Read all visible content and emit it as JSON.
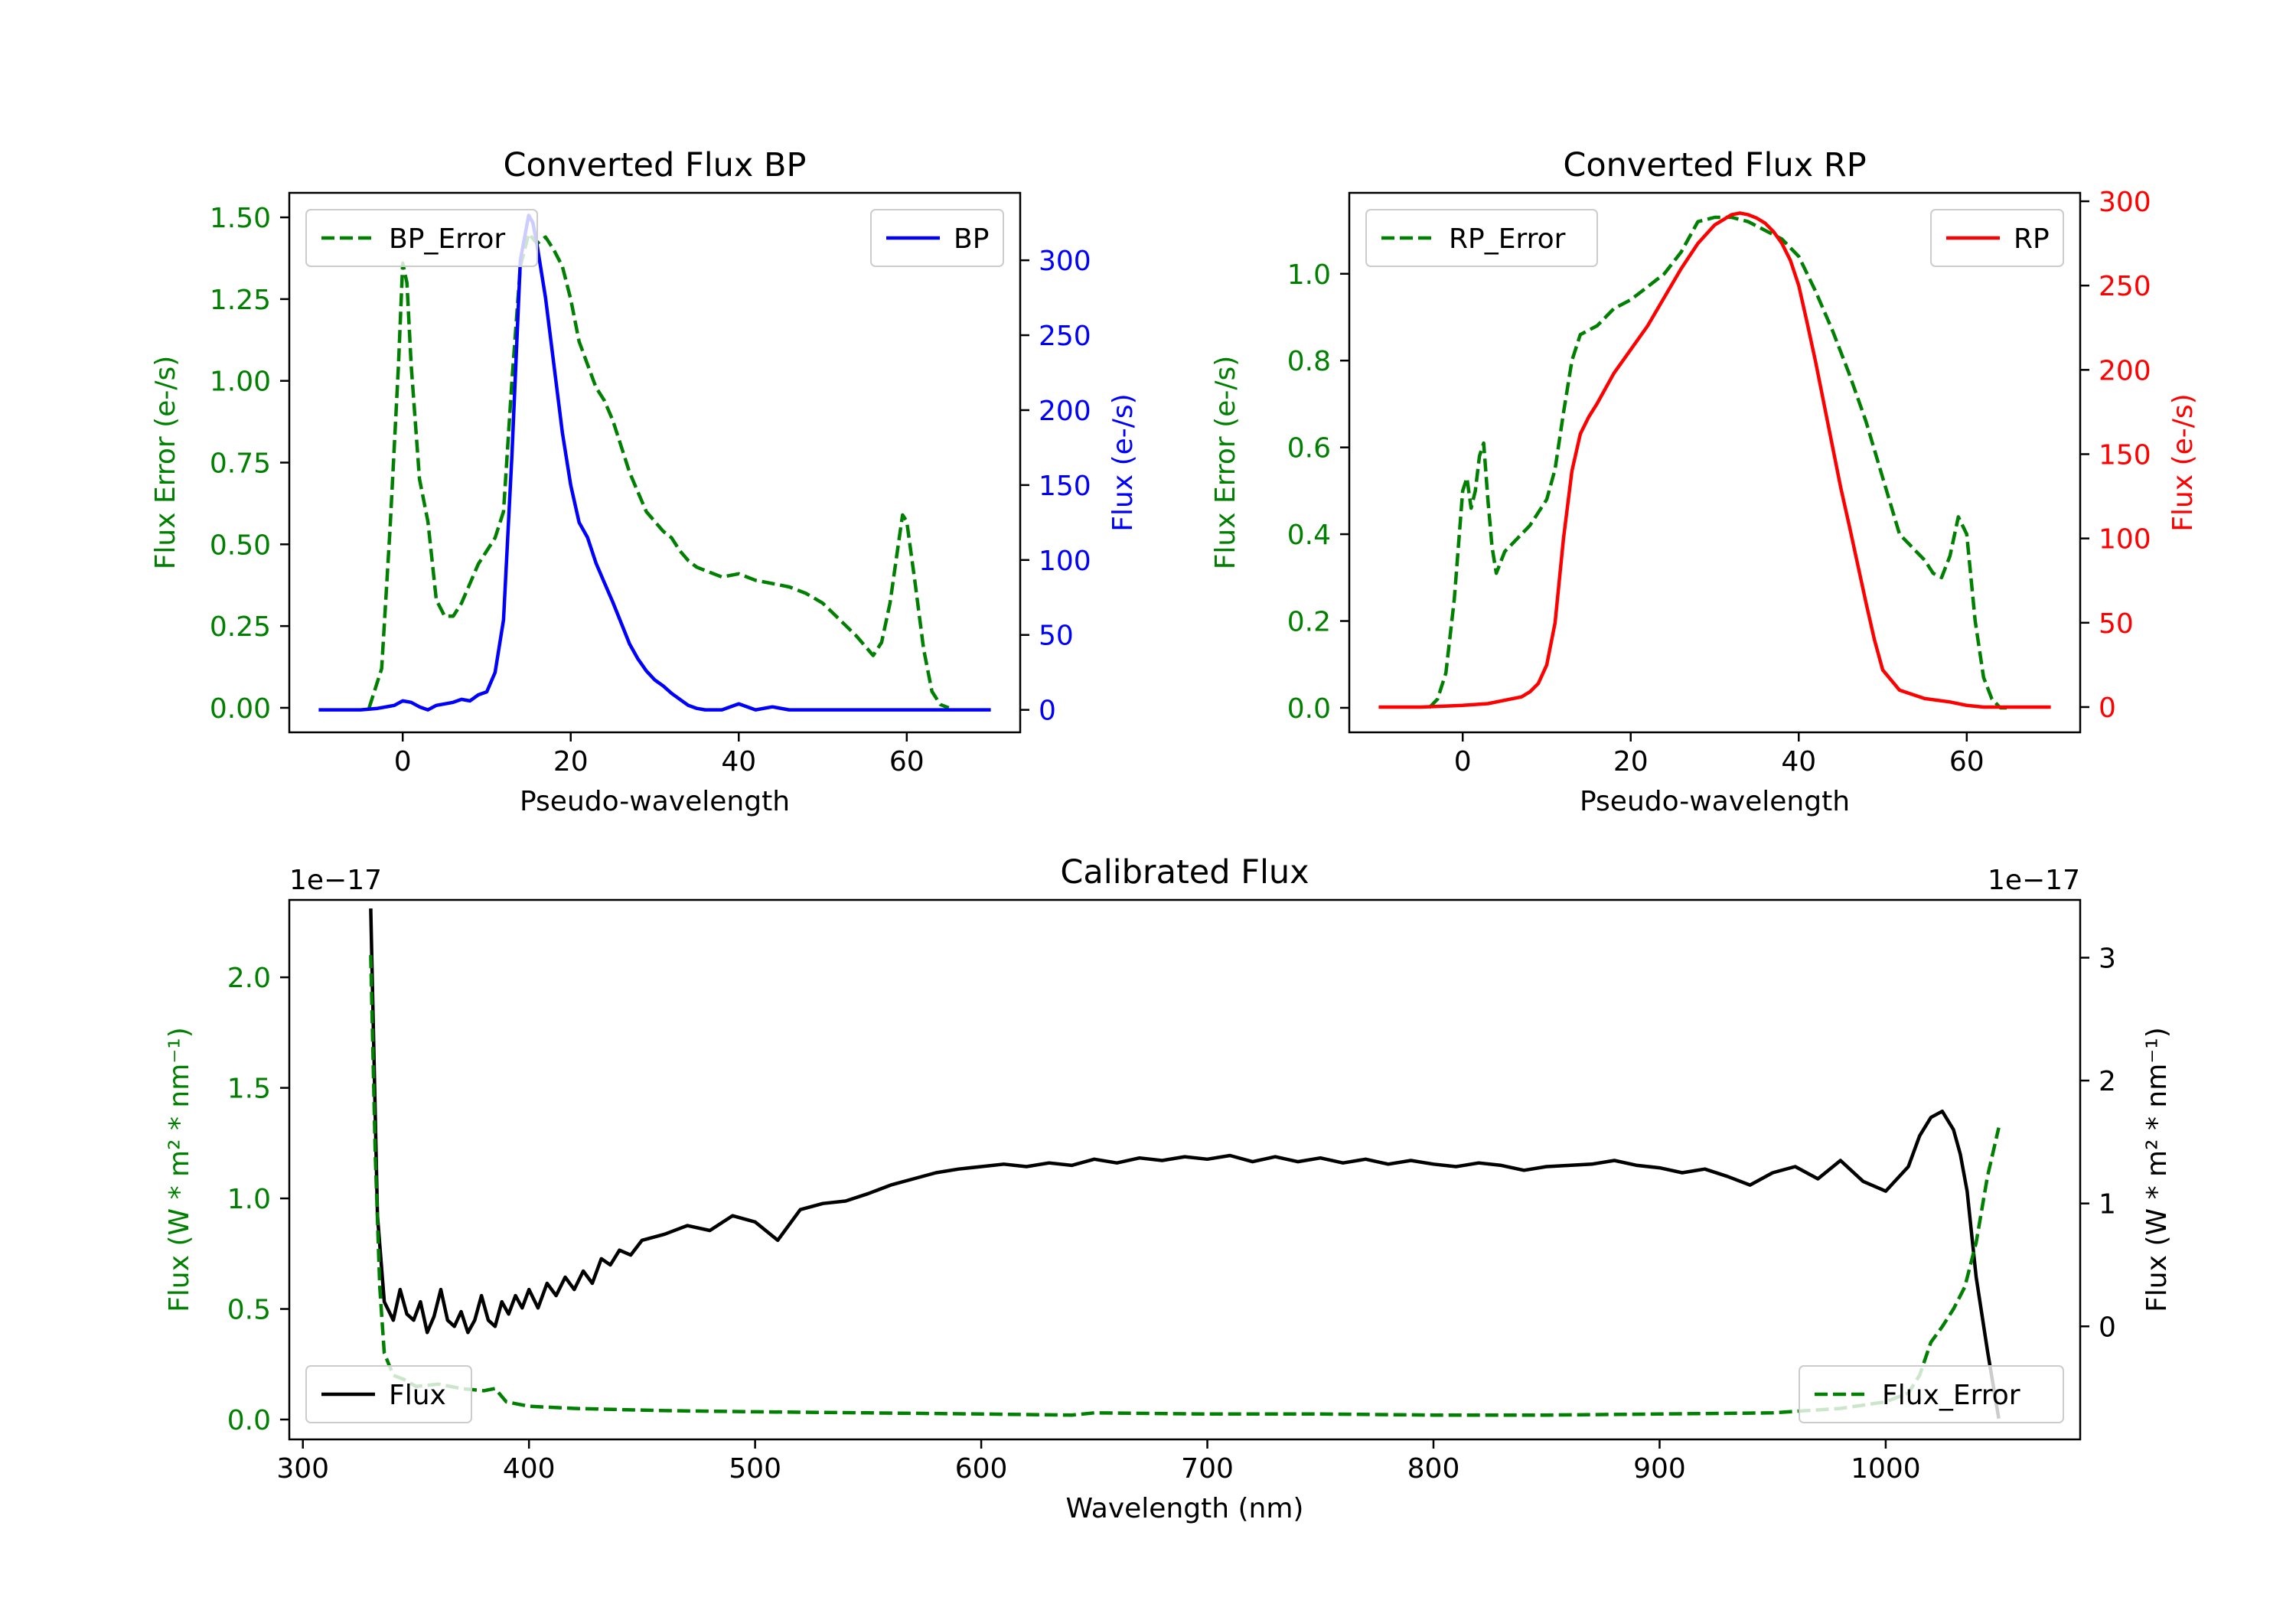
{
  "chart_data": [
    {
      "id": "bp",
      "type": "line",
      "title": "Converted Flux BP",
      "xlabel": "Pseudo-wavelength",
      "ylabel_left": "Flux Error (e-/s)",
      "ylabel_right": "Flux (e-/s)",
      "xlim": [
        -13.5,
        73.5
      ],
      "ylim_left": [
        -0.075,
        1.575
      ],
      "ylim_right": [
        -15,
        345
      ],
      "xticks": [
        0,
        20,
        40,
        60
      ],
      "yticks_left": [
        0.0,
        0.25,
        0.5,
        0.75,
        1.0,
        1.25,
        1.5
      ],
      "yticks_right": [
        0,
        50,
        100,
        150,
        200,
        250,
        300
      ],
      "ytick_labels_left": [
        "0.00",
        "0.25",
        "0.50",
        "0.75",
        "1.00",
        "1.25",
        "1.50"
      ],
      "left_color": "#008000",
      "right_color": "#0000ff",
      "legend_left": "BP_Error",
      "legend_right": "BP",
      "series": [
        {
          "name": "BP_Error",
          "axis": "left",
          "style": "dashed",
          "color": "#008000",
          "x": [
            -4,
            -2.5,
            -1.5,
            -0.5,
            0,
            0.5,
            1,
            2,
            3,
            4,
            5,
            6,
            7,
            8,
            9,
            10,
            11,
            12,
            13,
            14,
            15,
            16,
            17,
            18,
            19,
            20,
            21,
            22,
            23,
            24,
            25,
            26,
            27,
            28,
            29,
            30,
            31,
            32,
            33,
            34,
            35,
            36,
            38,
            40,
            42,
            44,
            46,
            48,
            50,
            52,
            54,
            55,
            56,
            57,
            58,
            59,
            59.5,
            60,
            61,
            62,
            63,
            64,
            65
          ],
          "y": [
            0.0,
            0.12,
            0.55,
            1.05,
            1.36,
            1.3,
            1.05,
            0.7,
            0.57,
            0.33,
            0.28,
            0.28,
            0.32,
            0.38,
            0.44,
            0.48,
            0.52,
            0.6,
            1.0,
            1.35,
            1.45,
            1.42,
            1.44,
            1.4,
            1.35,
            1.25,
            1.12,
            1.05,
            0.98,
            0.94,
            0.88,
            0.8,
            0.72,
            0.66,
            0.6,
            0.57,
            0.54,
            0.52,
            0.48,
            0.45,
            0.43,
            0.42,
            0.4,
            0.41,
            0.39,
            0.38,
            0.37,
            0.35,
            0.32,
            0.27,
            0.22,
            0.19,
            0.16,
            0.2,
            0.32,
            0.5,
            0.59,
            0.57,
            0.38,
            0.18,
            0.05,
            0.01,
            0.0
          ]
        },
        {
          "name": "BP",
          "axis": "right",
          "style": "solid",
          "color": "#0000ff",
          "x": [
            -10,
            -5,
            -3,
            -1,
            0,
            1,
            2,
            3,
            4,
            5,
            6,
            7,
            8,
            9,
            10,
            11,
            12,
            13,
            14,
            15,
            15.5,
            16,
            17,
            18,
            19,
            20,
            21,
            22,
            23,
            24,
            25,
            26,
            27,
            28,
            29,
            30,
            31,
            32,
            33,
            34,
            35,
            36,
            37,
            38,
            40,
            42,
            44,
            46,
            50,
            55,
            60,
            65,
            70
          ],
          "y": [
            0,
            0,
            1,
            3,
            6,
            5,
            2,
            0,
            3,
            4,
            5,
            7,
            6,
            10,
            12,
            25,
            60,
            170,
            300,
            330,
            325,
            310,
            275,
            230,
            185,
            150,
            125,
            115,
            98,
            85,
            72,
            58,
            44,
            34,
            26,
            20,
            16,
            11,
            7,
            3,
            1,
            0,
            0,
            0,
            4,
            0,
            2,
            0,
            0,
            0,
            0,
            0,
            0
          ]
        }
      ]
    },
    {
      "id": "rp",
      "type": "line",
      "title": "Converted Flux RP",
      "xlabel": "Pseudo-wavelength",
      "ylabel_left": "Flux Error (e-/s)",
      "ylabel_right": "Flux (e-/s)",
      "xlim": [
        -13.5,
        73.5
      ],
      "ylim_left": [
        -0.0565,
        1.1865
      ],
      "ylim_right": [
        -15,
        305
      ],
      "xticks": [
        0,
        20,
        40,
        60
      ],
      "yticks_left": [
        0.0,
        0.2,
        0.4,
        0.6,
        0.8,
        1.0
      ],
      "yticks_right": [
        0,
        50,
        100,
        150,
        200,
        250,
        300
      ],
      "ytick_labels_left": [
        "0.0",
        "0.2",
        "0.4",
        "0.6",
        "0.8",
        "1.0"
      ],
      "left_color": "#008000",
      "right_color": "#ff0000",
      "legend_left": "RP_Error",
      "legend_right": "RP",
      "series": [
        {
          "name": "RP_Error",
          "axis": "left",
          "style": "dashed",
          "color": "#008000",
          "x": [
            -4,
            -3,
            -2,
            -1,
            0,
            0.5,
            1,
            1.5,
            2,
            2.5,
            3,
            3.5,
            4,
            5,
            6,
            7,
            8,
            9,
            10,
            11,
            12,
            13,
            14,
            15,
            16,
            17,
            18,
            19,
            20,
            22,
            24,
            26,
            28,
            30,
            32,
            34,
            36,
            38,
            40,
            42,
            44,
            46,
            48,
            50,
            52,
            54,
            55,
            56,
            57,
            58,
            59,
            60,
            61,
            62,
            63,
            64,
            65
          ],
          "y": [
            0.0,
            0.02,
            0.08,
            0.25,
            0.5,
            0.53,
            0.46,
            0.5,
            0.58,
            0.61,
            0.48,
            0.37,
            0.31,
            0.36,
            0.38,
            0.4,
            0.42,
            0.45,
            0.48,
            0.55,
            0.68,
            0.8,
            0.86,
            0.87,
            0.88,
            0.9,
            0.92,
            0.93,
            0.94,
            0.97,
            1.0,
            1.05,
            1.12,
            1.13,
            1.13,
            1.12,
            1.1,
            1.08,
            1.04,
            0.96,
            0.87,
            0.77,
            0.66,
            0.53,
            0.4,
            0.36,
            0.34,
            0.31,
            0.3,
            0.35,
            0.44,
            0.4,
            0.2,
            0.07,
            0.02,
            0.0,
            0.0
          ]
        },
        {
          "name": "RP",
          "axis": "right",
          "style": "solid",
          "color": "#ff0000",
          "x": [
            -10,
            -5,
            0,
            3,
            5,
            7,
            8,
            9,
            10,
            11,
            12,
            13,
            14,
            15,
            16,
            18,
            20,
            22,
            24,
            26,
            28,
            30,
            32,
            33,
            34,
            35,
            36,
            37,
            38,
            39,
            40,
            41,
            42,
            43,
            44,
            45,
            46,
            47,
            48,
            49,
            50,
            52,
            55,
            58,
            60,
            62,
            65,
            70
          ],
          "y": [
            0,
            0,
            1,
            2,
            4,
            6,
            9,
            14,
            25,
            50,
            100,
            140,
            162,
            172,
            180,
            198,
            212,
            226,
            243,
            260,
            275,
            286,
            292,
            293,
            292,
            290,
            287,
            282,
            275,
            265,
            250,
            228,
            205,
            180,
            155,
            130,
            108,
            85,
            62,
            40,
            22,
            10,
            5,
            3,
            1,
            0,
            0,
            0
          ]
        }
      ]
    },
    {
      "id": "cal",
      "type": "line",
      "title": "Calibrated Flux",
      "xlabel": "Wavelength (nm)",
      "ylabel_left": "Flux (W * m² * nm⁻¹)",
      "ylabel_right": "Flux (W * m² * nm⁻¹)",
      "offset_left": "1e−17",
      "offset_right": "1e−17",
      "xlim": [
        294,
        1086
      ],
      "ylim_left": [
        -0.09,
        2.35
      ],
      "ylim_right": [
        -0.92,
        3.47
      ],
      "xticks": [
        300,
        400,
        500,
        600,
        700,
        800,
        900,
        1000
      ],
      "yticks_left": [
        0.0,
        0.5,
        1.0,
        1.5,
        2.0
      ],
      "yticks_right": [
        0,
        1,
        2,
        3
      ],
      "ytick_labels_left": [
        "0.0",
        "0.5",
        "1.0",
        "1.5",
        "2.0"
      ],
      "left_color": "#008000",
      "right_color": "#000000",
      "legend_left": "Flux",
      "legend_right": "Flux_Error",
      "series": [
        {
          "name": "Flux",
          "axis": "right",
          "style": "solid",
          "color": "#000000",
          "x": [
            330,
            333,
            336,
            340,
            343,
            346,
            349,
            352,
            355,
            358,
            361,
            364,
            367,
            370,
            373,
            376,
            379,
            382,
            385,
            388,
            391,
            394,
            397,
            400,
            404,
            408,
            412,
            416,
            420,
            424,
            428,
            432,
            436,
            440,
            445,
            450,
            460,
            470,
            480,
            490,
            500,
            510,
            520,
            530,
            540,
            550,
            560,
            570,
            580,
            590,
            600,
            610,
            620,
            630,
            640,
            650,
            660,
            670,
            680,
            690,
            700,
            710,
            720,
            730,
            740,
            750,
            760,
            770,
            780,
            790,
            800,
            810,
            820,
            830,
            840,
            850,
            860,
            870,
            880,
            890,
            900,
            910,
            920,
            930,
            940,
            950,
            960,
            970,
            980,
            990,
            1000,
            1010,
            1015,
            1020,
            1025,
            1030,
            1033,
            1036,
            1040,
            1045,
            1050
          ],
          "y": [
            3.4,
            0.9,
            0.2,
            0.05,
            0.3,
            0.1,
            0.05,
            0.2,
            -0.05,
            0.08,
            0.3,
            0.05,
            0.0,
            0.12,
            -0.05,
            0.05,
            0.25,
            0.05,
            0.0,
            0.2,
            0.1,
            0.25,
            0.15,
            0.3,
            0.15,
            0.35,
            0.25,
            0.4,
            0.3,
            0.45,
            0.35,
            0.55,
            0.5,
            0.62,
            0.58,
            0.7,
            0.75,
            0.82,
            0.78,
            0.9,
            0.85,
            0.7,
            0.95,
            1.0,
            1.02,
            1.08,
            1.15,
            1.2,
            1.25,
            1.28,
            1.3,
            1.32,
            1.3,
            1.33,
            1.31,
            1.36,
            1.33,
            1.37,
            1.35,
            1.38,
            1.36,
            1.39,
            1.34,
            1.38,
            1.34,
            1.37,
            1.33,
            1.36,
            1.32,
            1.35,
            1.32,
            1.3,
            1.33,
            1.31,
            1.27,
            1.3,
            1.31,
            1.32,
            1.35,
            1.31,
            1.29,
            1.25,
            1.28,
            1.22,
            1.15,
            1.25,
            1.3,
            1.2,
            1.35,
            1.18,
            1.1,
            1.3,
            1.55,
            1.7,
            1.75,
            1.6,
            1.4,
            1.1,
            0.4,
            -0.2,
            -0.75
          ]
        },
        {
          "name": "Flux_Error",
          "axis": "left",
          "style": "dashed",
          "color": "#008000",
          "x": [
            330,
            332,
            334,
            336,
            340,
            345,
            350,
            360,
            370,
            380,
            385,
            390,
            400,
            420,
            440,
            460,
            500,
            550,
            600,
            640,
            650,
            700,
            750,
            800,
            850,
            900,
            950,
            980,
            1000,
            1010,
            1015,
            1020,
            1025,
            1030,
            1035,
            1040,
            1045,
            1050
          ],
          "y": [
            2.1,
            1.2,
            0.6,
            0.3,
            0.2,
            0.18,
            0.15,
            0.16,
            0.14,
            0.13,
            0.14,
            0.08,
            0.06,
            0.05,
            0.045,
            0.04,
            0.035,
            0.03,
            0.025,
            0.02,
            0.03,
            0.025,
            0.025,
            0.02,
            0.02,
            0.025,
            0.03,
            0.05,
            0.08,
            0.12,
            0.2,
            0.35,
            0.42,
            0.5,
            0.6,
            0.8,
            1.1,
            1.32
          ]
        }
      ]
    }
  ]
}
